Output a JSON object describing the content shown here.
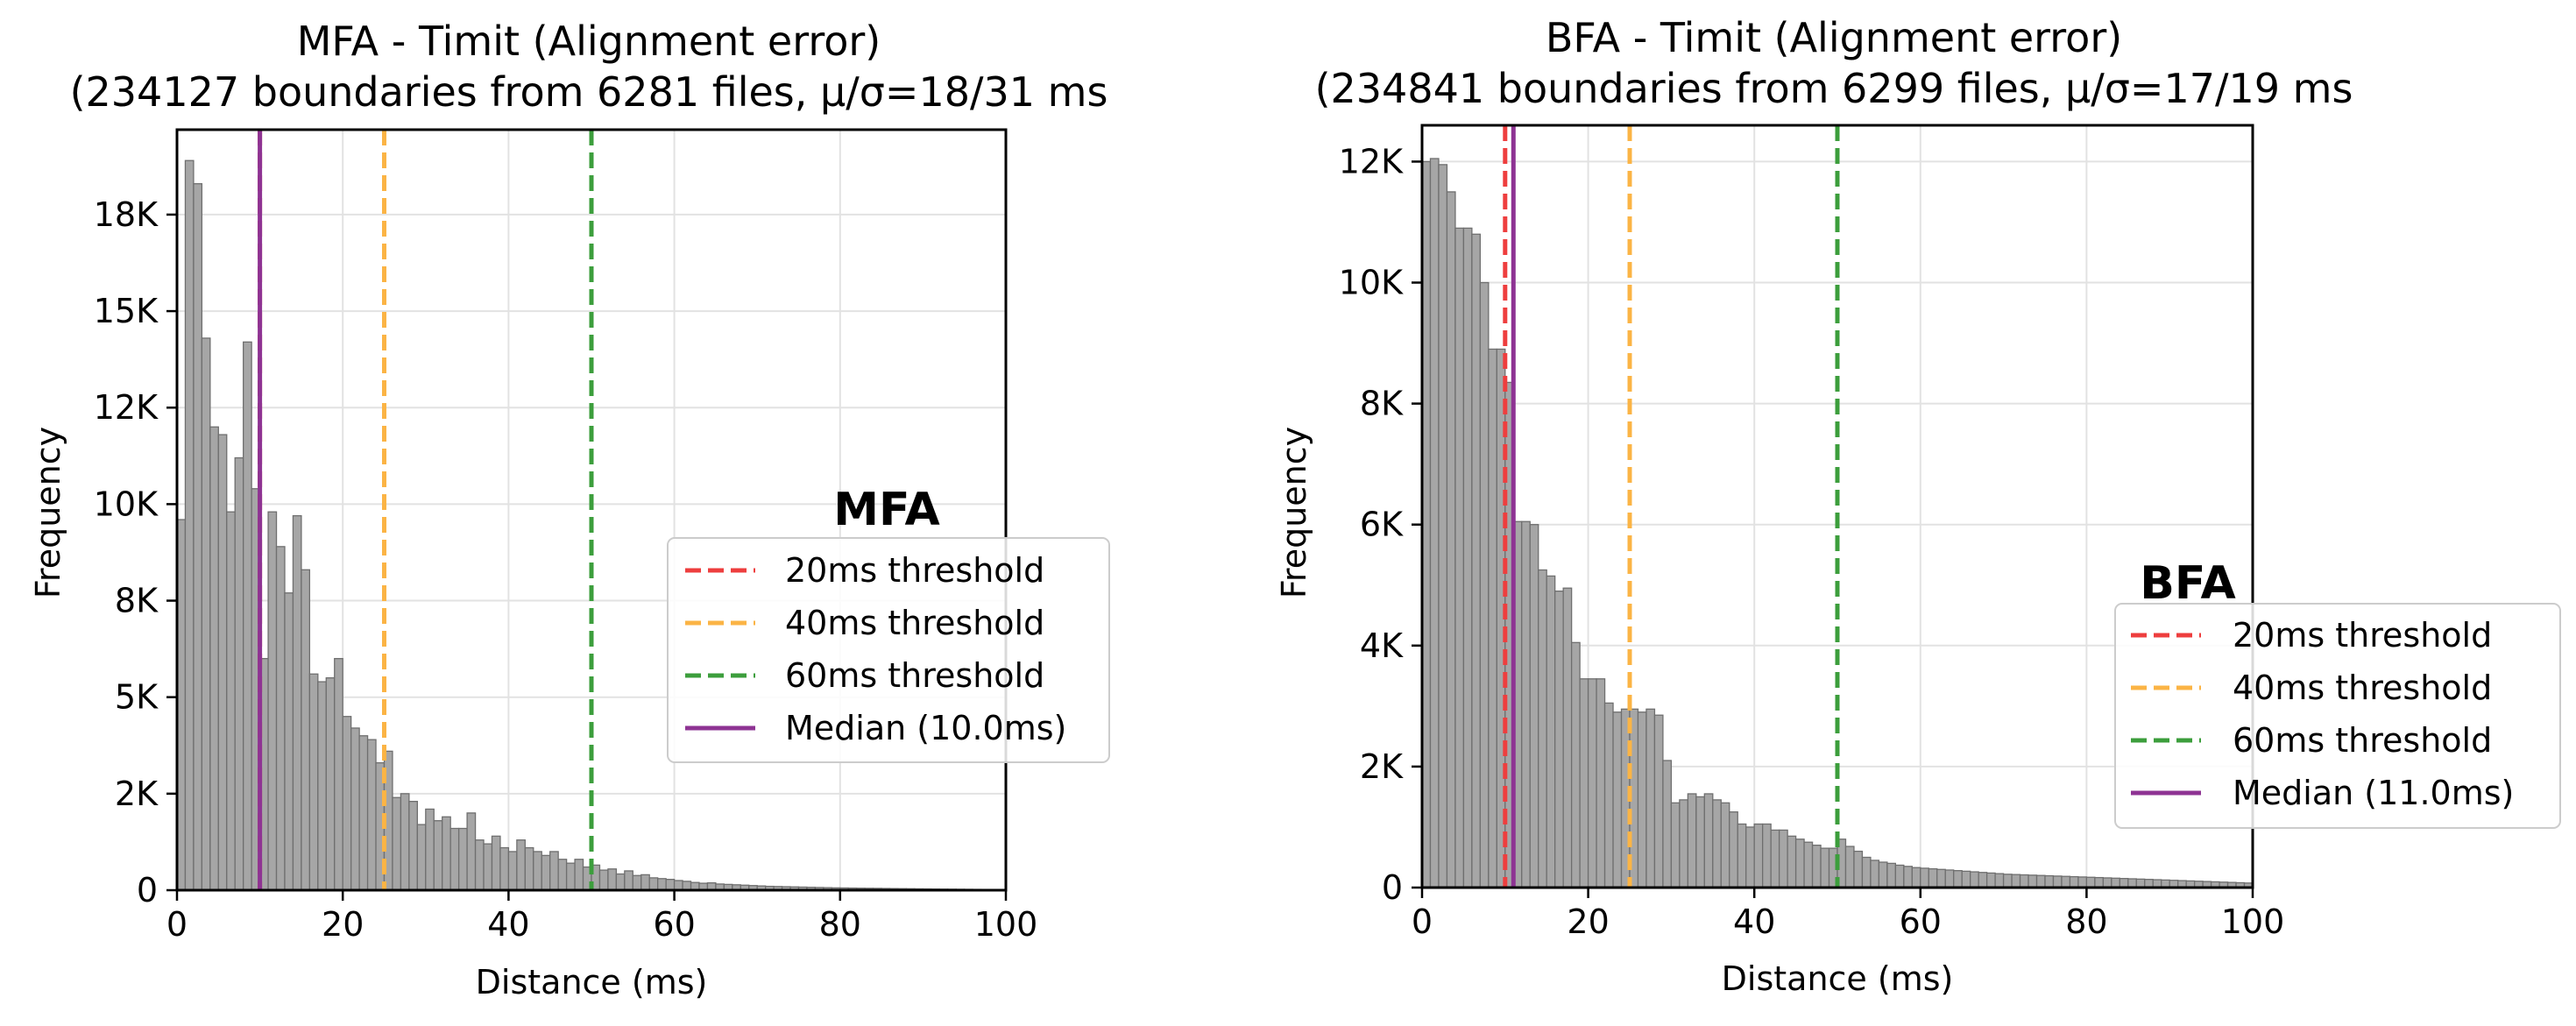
{
  "chart_data": [
    {
      "type": "bar",
      "tag": "MFA",
      "title_line1": "MFA - Timit (Alignment error)",
      "title_line2": "(234127 boundaries from 6281 files, μ/σ=18/31 ms",
      "xlabel": "Distance (ms)",
      "ylabel": "Frequency",
      "xlim": [
        0,
        100
      ],
      "ylim": [
        0,
        19700
      ],
      "xticks": [
        0,
        20,
        40,
        60,
        80,
        100
      ],
      "xtick_labels": [
        "0",
        "20",
        "40",
        "60",
        "80",
        "100"
      ],
      "yticks": [
        0,
        2500,
        5000,
        7500,
        10000,
        12500,
        15000,
        17500
      ],
      "ytick_labels": [
        "0",
        "2K",
        "5K",
        "8K",
        "10K",
        "12K",
        "15K",
        "18K"
      ],
      "grid": true,
      "legend_position": "center-right",
      "bin_width": 1,
      "bin_start": 0,
      "values": [
        9600,
        18900,
        18300,
        14300,
        12000,
        11800,
        9800,
        11200,
        14200,
        10400,
        6000,
        9800,
        8900,
        7700,
        9700,
        8300,
        5600,
        5400,
        5500,
        6000,
        4500,
        4200,
        4000,
        3900,
        3300,
        3600,
        2400,
        2500,
        2300,
        1700,
        2100,
        1800,
        1900,
        1600,
        1600,
        2000,
        1300,
        1200,
        1400,
        1100,
        1000,
        1300,
        1100,
        1000,
        900,
        1000,
        800,
        700,
        800,
        600,
        650,
        520,
        550,
        420,
        500,
        380,
        400,
        320,
        300,
        280,
        250,
        230,
        200,
        180,
        190,
        160,
        150,
        140,
        130,
        120,
        110,
        100,
        95,
        90,
        85,
        80,
        75,
        70,
        65,
        60,
        58,
        55,
        52,
        50,
        48,
        45,
        42,
        40,
        38,
        35,
        33,
        30,
        28,
        26,
        24,
        22,
        20,
        18,
        16,
        15
      ],
      "lines": [
        {
          "name": "20ms threshold",
          "x": 10,
          "style": "dashed",
          "color": "#ee3e3e"
        },
        {
          "name": "40ms threshold",
          "x": 25,
          "style": "dashed",
          "color": "#fbb445"
        },
        {
          "name": "60ms threshold",
          "x": 50,
          "style": "dashed",
          "color": "#3c9e3c"
        },
        {
          "name": "Median (10.0ms)",
          "x": 10,
          "style": "solid",
          "color": "#8e3393"
        }
      ]
    },
    {
      "type": "bar",
      "tag": "BFA",
      "title_line1": "BFA - Timit (Alignment error)",
      "title_line2": "(234841 boundaries from 6299 files, μ/σ=17/19 ms",
      "xlabel": "Distance (ms)",
      "ylabel": "Frequency",
      "xlim": [
        0,
        100
      ],
      "ylim": [
        0,
        12600
      ],
      "xticks": [
        0,
        20,
        40,
        60,
        80,
        100
      ],
      "xtick_labels": [
        "0",
        "20",
        "40",
        "60",
        "80",
        "100"
      ],
      "yticks": [
        0,
        2000,
        4000,
        6000,
        8000,
        10000,
        12000
      ],
      "ytick_labels": [
        "0",
        "2K",
        "4K",
        "6K",
        "8K",
        "10K",
        "12K"
      ],
      "grid": true,
      "legend_position": "lower-right",
      "bin_width": 1,
      "bin_start": 0,
      "values": [
        12000,
        12050,
        11950,
        11500,
        10900,
        10900,
        10800,
        10000,
        8900,
        8900,
        8350,
        6050,
        6050,
        6000,
        5250,
        5150,
        4900,
        4950,
        4050,
        3450,
        3450,
        3450,
        3050,
        2900,
        2950,
        2950,
        2900,
        2950,
        2850,
        2100,
        1400,
        1450,
        1550,
        1500,
        1550,
        1450,
        1400,
        1250,
        1050,
        1000,
        1050,
        1050,
        950,
        950,
        850,
        800,
        750,
        700,
        650,
        650,
        800,
        680,
        600,
        500,
        450,
        420,
        400,
        370,
        350,
        330,
        320,
        310,
        300,
        290,
        280,
        270,
        260,
        250,
        240,
        230,
        220,
        215,
        210,
        205,
        200,
        195,
        190,
        185,
        180,
        175,
        170,
        165,
        160,
        155,
        150,
        145,
        140,
        135,
        130,
        125,
        120,
        115,
        110,
        105,
        100,
        95,
        90,
        85,
        80,
        75
      ],
      "lines": [
        {
          "name": "20ms threshold",
          "x": 10,
          "style": "dashed",
          "color": "#ee3e3e"
        },
        {
          "name": "40ms threshold",
          "x": 25,
          "style": "dashed",
          "color": "#fbb445"
        },
        {
          "name": "60ms threshold",
          "x": 50,
          "style": "dashed",
          "color": "#3c9e3c"
        },
        {
          "name": "Median (11.0ms)",
          "x": 11,
          "style": "solid",
          "color": "#8e3393"
        }
      ]
    }
  ],
  "colors": {
    "bar_fill": "#a6a6a6",
    "bar_edge": "#6f6f6f",
    "grid": "#e2e2e2",
    "tag": "#e8262a"
  }
}
